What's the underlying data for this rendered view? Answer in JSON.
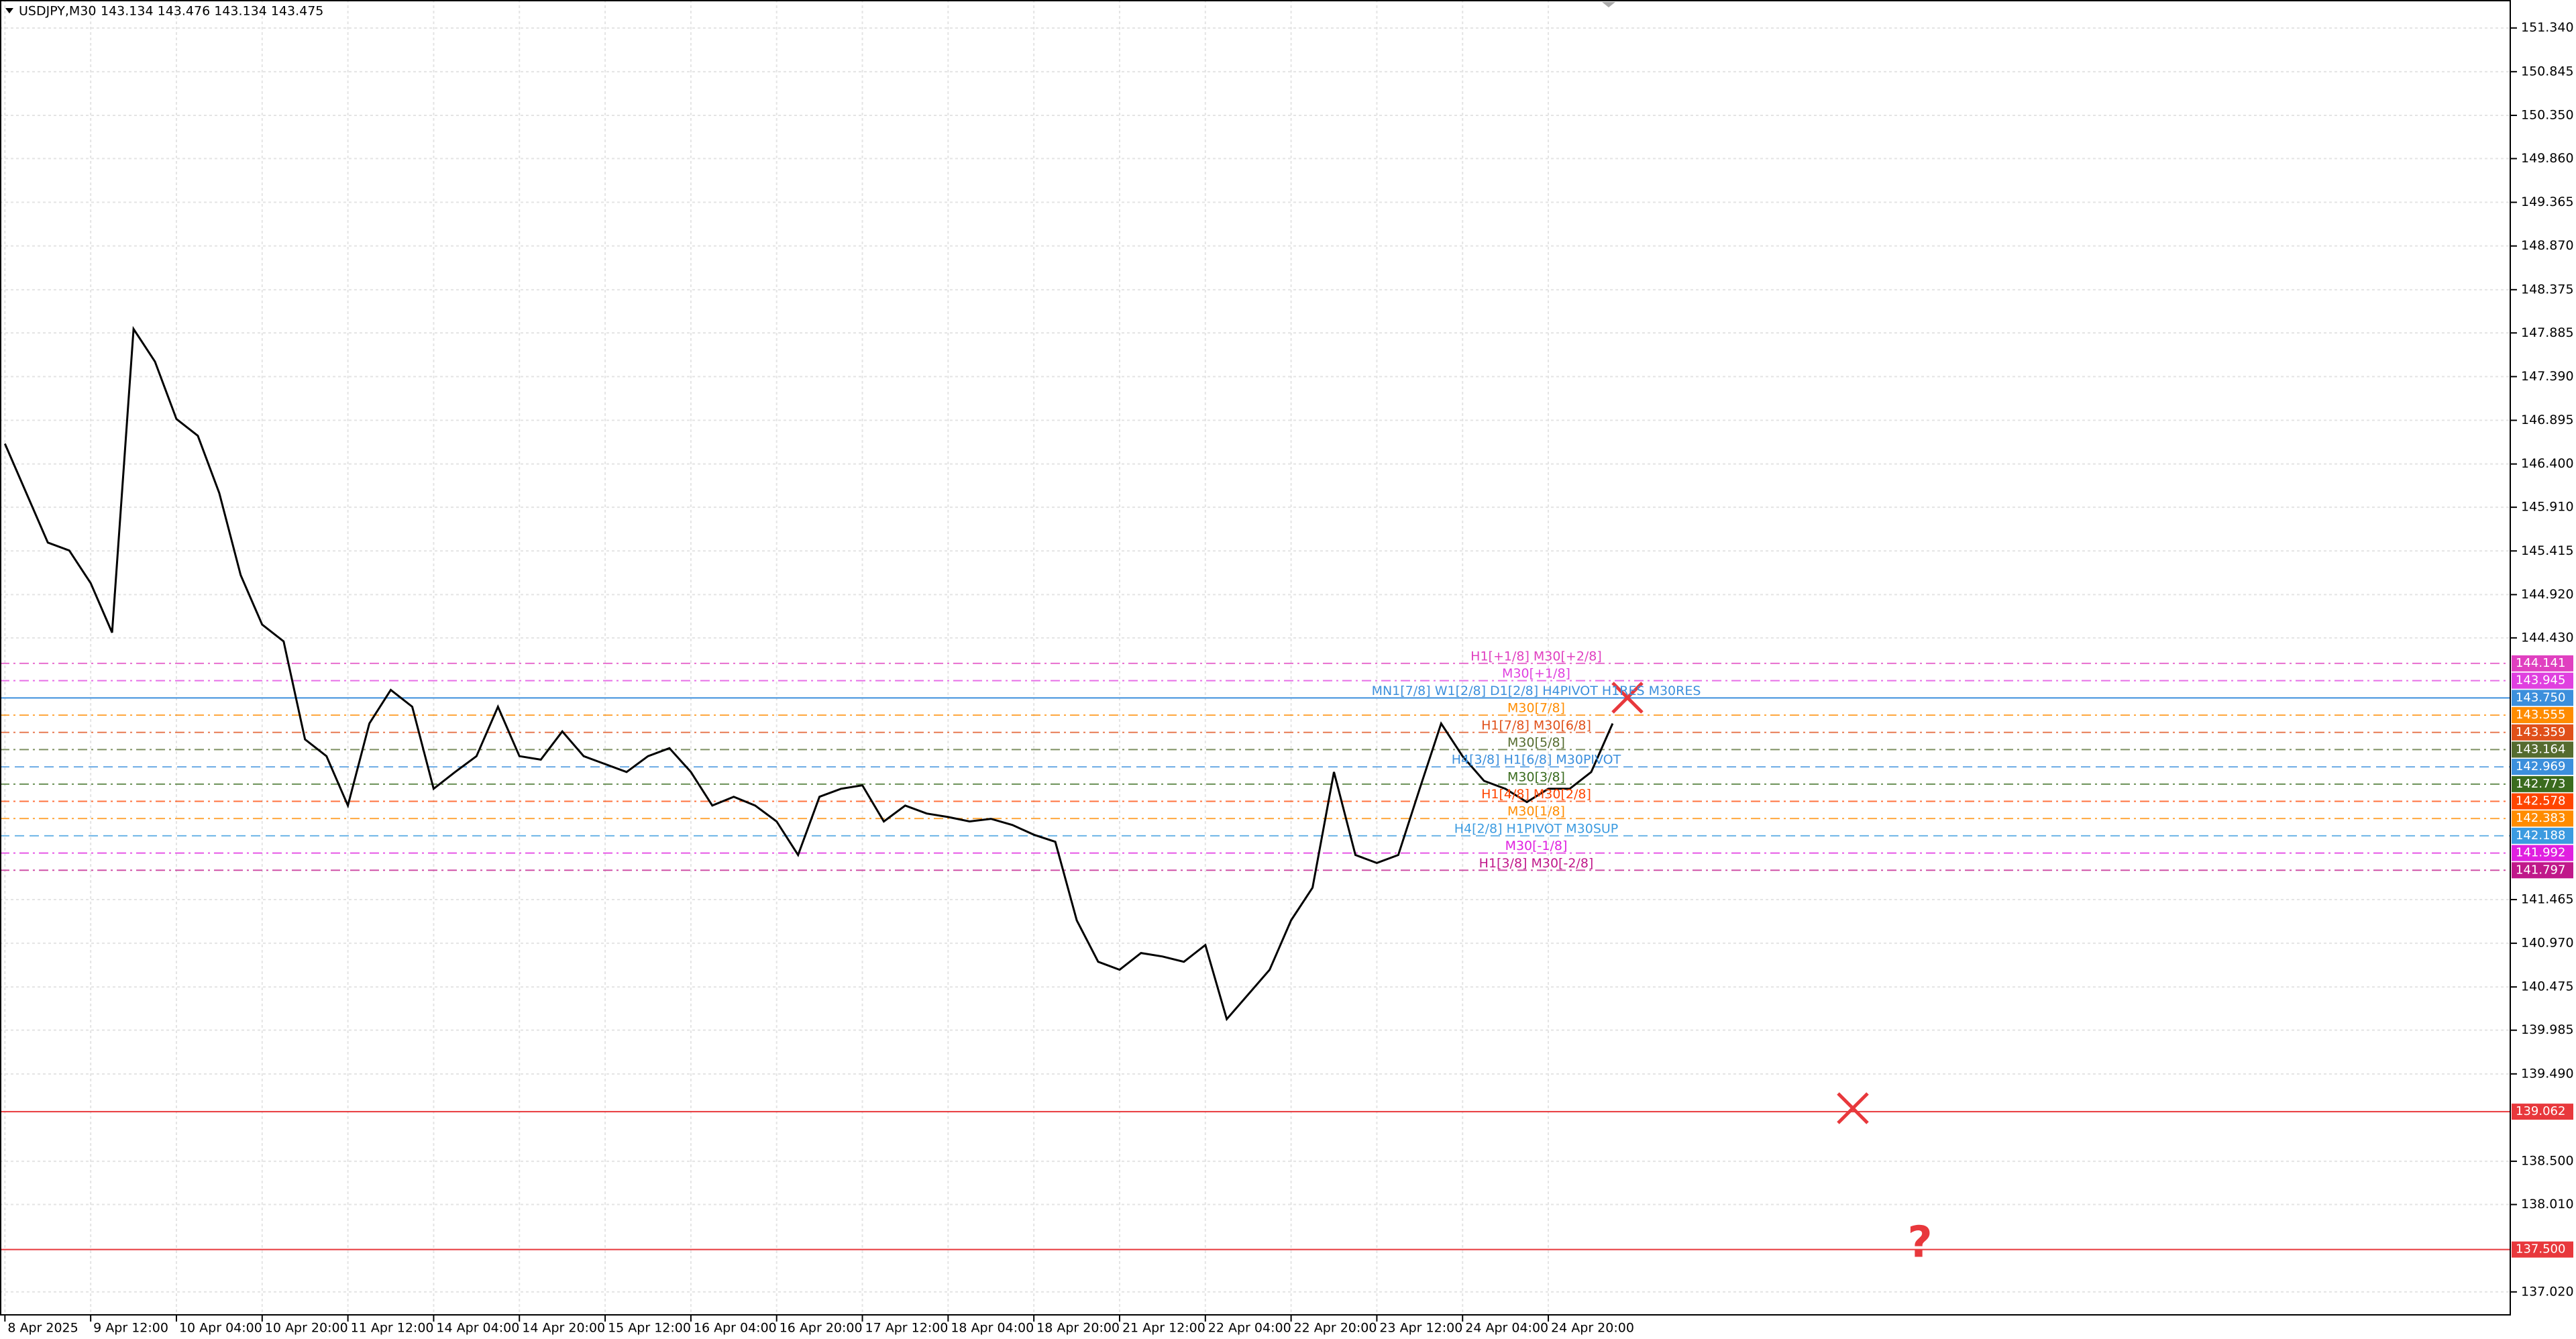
{
  "chart_data": {
    "type": "line",
    "title": "USDJPY,M30",
    "subtitle": "143.134 143.476 143.134 143.475",
    "xlim": [
      -1.84,
      935
    ],
    "ylim": [
      136.76,
      151.657
    ],
    "grid": true,
    "xticks": [
      {
        "value": 0,
        "label": "8 Apr 2025"
      },
      {
        "value": 32,
        "label": "9 Apr 12:00"
      },
      {
        "value": 64,
        "label": "10 Apr 04:00"
      },
      {
        "value": 96,
        "label": "10 Apr 20:00"
      },
      {
        "value": 128,
        "label": "11 Apr 12:00"
      },
      {
        "value": 160,
        "label": "14 Apr 04:00"
      },
      {
        "value": 192,
        "label": "14 Apr 20:00"
      },
      {
        "value": 224,
        "label": "15 Apr 12:00"
      },
      {
        "value": 256,
        "label": "16 Apr 04:00"
      },
      {
        "value": 288,
        "label": "16 Apr 20:00"
      },
      {
        "value": 320,
        "label": "17 Apr 12:00"
      },
      {
        "value": 352,
        "label": "18 Apr 04:00"
      },
      {
        "value": 384,
        "label": "18 Apr 20:00"
      },
      {
        "value": 416,
        "label": "21 Apr 12:00"
      },
      {
        "value": 448,
        "label": "22 Apr 04:00"
      },
      {
        "value": 480,
        "label": "22 Apr 20:00"
      },
      {
        "value": 512,
        "label": "23 Apr 12:00"
      },
      {
        "value": 544,
        "label": "24 Apr 04:00"
      },
      {
        "value": 576,
        "label": "24 Apr 20:00"
      }
    ],
    "yticks": [
      {
        "value": 151.34,
        "label": "151.340"
      },
      150.845,
      {
        "value": 150.35,
        "label": "150.350"
      },
      {
        "value": 149.86,
        "label": "149.860"
      },
      149.365,
      {
        "value": 148.87,
        "label": "148.870"
      },
      148.375,
      147.885,
      {
        "value": 147.39,
        "label": "147.390"
      },
      146.895,
      {
        "value": 146.4,
        "label": "146.400"
      },
      {
        "value": 145.91,
        "label": "145.910"
      },
      145.415,
      {
        "value": 144.92,
        "label": "144.920"
      },
      {
        "value": 144.43,
        "label": "144.430"
      },
      141.465,
      {
        "value": 140.97,
        "label": "140.970"
      },
      140.475,
      139.985,
      {
        "value": 139.49,
        "label": "139.490"
      },
      {
        "value": 138.5,
        "label": "138.500"
      },
      {
        "value": 138.01,
        "label": "138.010"
      },
      {
        "value": 137.02,
        "label": "137.020"
      }
    ],
    "series": [
      {
        "name": "USDJPY",
        "color": "#000000",
        "x": [
          0,
          8,
          16,
          24,
          32,
          40,
          48,
          56,
          64,
          72,
          80,
          88,
          96,
          104,
          112,
          120,
          128,
          136,
          144,
          152,
          160,
          168,
          176,
          184,
          192,
          200,
          208,
          216,
          224,
          232,
          240,
          248,
          256,
          264,
          272,
          280,
          288,
          296,
          304,
          312,
          320,
          328,
          336,
          344,
          352,
          360,
          368,
          376,
          384,
          392,
          400,
          408,
          416,
          424,
          432,
          440,
          448,
          456,
          464,
          472,
          480,
          488,
          496,
          504,
          512,
          520,
          528,
          536,
          544,
          552,
          560,
          568,
          576,
          584,
          592,
          600
        ],
        "values": [
          146.63,
          146.07,
          145.51,
          145.42,
          145.05,
          144.49,
          147.93,
          147.56,
          146.91,
          146.72,
          146.07,
          145.14,
          144.58,
          144.39,
          143.28,
          143.09,
          142.53,
          143.46,
          143.84,
          143.65,
          142.72,
          142.91,
          143.09,
          143.65,
          143.09,
          143.05,
          143.37,
          143.09,
          143.0,
          142.91,
          143.09,
          143.18,
          142.91,
          142.53,
          142.63,
          142.53,
          142.35,
          141.97,
          142.63,
          142.72,
          142.76,
          142.35,
          142.53,
          142.44,
          142.4,
          142.35,
          142.38,
          142.31,
          142.2,
          142.12,
          141.23,
          140.76,
          140.67,
          140.86,
          140.82,
          140.76,
          140.95,
          140.11,
          140.39,
          140.67,
          141.23,
          141.6,
          142.91,
          141.97,
          141.88,
          141.97,
          142.72,
          143.46,
          143.09,
          142.81,
          142.72,
          142.57,
          142.72,
          142.72,
          142.91,
          143.46
        ]
      }
    ],
    "levels": [
      {
        "value": 144.141,
        "label": "144.141",
        "color": "#e040c0",
        "style": "dashdot",
        "text": "H1[+1/8] M30[+2/8]"
      },
      {
        "value": 143.945,
        "label": "143.945",
        "color": "#e040e0",
        "style": "dashdot",
        "text": "M30[+1/8]"
      },
      {
        "value": 143.75,
        "label": "143.750",
        "color": "#3c8fdc",
        "style": "solid",
        "text": "MN1[7/8] W1[2/8] D1[2/8] H4PIVOT H1RES M30RES"
      },
      {
        "value": 143.555,
        "label": "143.555",
        "color": "#ff8c00",
        "style": "dashdot",
        "text": "M30[7/8]"
      },
      {
        "value": 143.359,
        "label": "143.359",
        "color": "#e0501a",
        "style": "dashdot",
        "text": "H1[7/8] M30[6/8]"
      },
      {
        "value": 143.164,
        "label": "143.164",
        "color": "#556b2f",
        "style": "dashdot",
        "text": "M30[5/8]"
      },
      {
        "value": 142.969,
        "label": "142.969",
        "color": "#3c8fdc",
        "style": "dashed",
        "text": "H4[3/8] H1[6/8] M30PIVOT"
      },
      {
        "value": 142.773,
        "label": "142.773",
        "color": "#3a6b1e",
        "style": "dashdot",
        "text": "M30[3/8]"
      },
      {
        "value": 142.578,
        "label": "142.578",
        "color": "#ff4500",
        "style": "dashdot",
        "text": "H1[4/8] M30[2/8]"
      },
      {
        "value": 142.383,
        "label": "142.383",
        "color": "#ff8c00",
        "style": "dashdot",
        "text": "M30[1/8]"
      },
      {
        "value": 142.188,
        "label": "142.188",
        "color": "#3c9be0",
        "style": "dashed",
        "text": "H4[2/8] H1PIVOT M30SUP"
      },
      {
        "value": 141.992,
        "label": "141.992",
        "color": "#e020e0",
        "style": "dashdot",
        "text": "M30[-1/8]"
      },
      {
        "value": 141.797,
        "label": "141.797",
        "color": "#c0188a",
        "style": "dashdot",
        "text": "H1[3/8] M30[-2/8]"
      },
      {
        "value": 139.062,
        "label": "139.062",
        "color": "#e8383c",
        "style": "solid"
      },
      {
        "value": 137.5,
        "label": "137.500",
        "color": "#e8383c",
        "style": "solid"
      }
    ]
  }
}
